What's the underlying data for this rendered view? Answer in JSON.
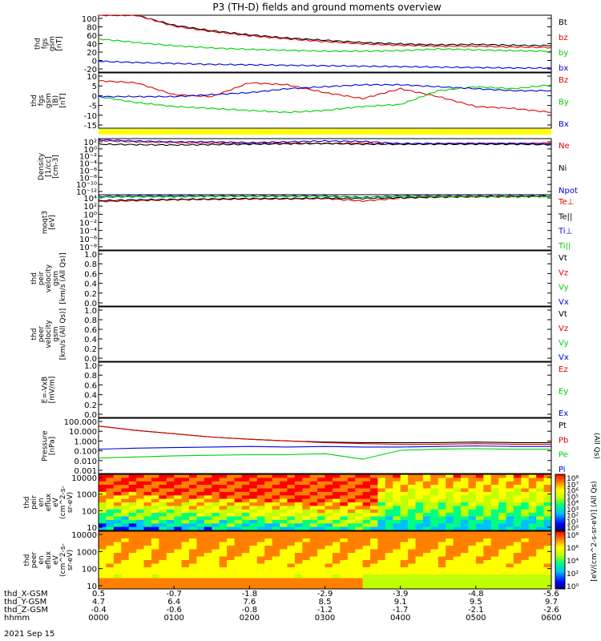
{
  "title": "P3 (TH-D) fields and ground moments overview",
  "date": "2021 Sep 15",
  "colors": {
    "black": "#000000",
    "red": "#e00000",
    "green": "#00d000",
    "blue": "#0000e0",
    "yellow": "#ffff00"
  },
  "panels": [
    {
      "id": "fgs-gsm",
      "ylabel": [
        "thd",
        "fgs",
        "gsm",
        "[nT]"
      ],
      "ticks": [
        "100",
        "80",
        "60",
        "40",
        "20",
        "0",
        "-20"
      ],
      "legend": [
        {
          "label": "Bt",
          "color": "black"
        },
        {
          "label": "bz",
          "color": "red"
        },
        {
          "label": "by",
          "color": "green"
        },
        {
          "label": "bx",
          "color": "blue"
        }
      ]
    },
    {
      "id": "fgs-gsm-sm",
      "ylabel": [
        "thd",
        "fgs",
        "gsm",
        "(B)",
        "[nT]"
      ],
      "ticks": [
        "10",
        "5",
        "0",
        "-5",
        "-10",
        "-15"
      ],
      "legend": [
        {
          "label": "Bz",
          "color": "red"
        },
        {
          "label": "By",
          "color": "green"
        },
        {
          "label": "Bx",
          "color": "blue"
        }
      ]
    },
    {
      "id": "density",
      "ylabel": [
        "Density",
        "[1/cc]",
        "[cm-3]"
      ],
      "ticks": [
        "10²",
        "10⁰",
        "10⁻²",
        "10⁻⁴",
        "10⁻⁶",
        "10⁻⁸",
        "10⁻¹⁰",
        "10⁻¹²"
      ],
      "legend": [
        {
          "label": "Ne",
          "color": "red"
        },
        {
          "label": "Ni",
          "color": "black"
        },
        {
          "label": "Npot",
          "color": "blue"
        }
      ]
    },
    {
      "id": "temperature",
      "ylabel": [
        "moqt3",
        "[eV]"
      ],
      "ticks": [
        "10⁴",
        "10²",
        "10⁰",
        "10⁻²",
        "10⁻⁴",
        "10⁻⁶",
        "10⁻⁸"
      ],
      "legend": [
        {
          "label": "Te⊥",
          "color": "red"
        },
        {
          "label": "Te||",
          "color": "black"
        },
        {
          "label": "Ti⊥",
          "color": "blue"
        },
        {
          "label": "Ti||",
          "color": "green"
        }
      ]
    },
    {
      "id": "peir-velocity",
      "ylabel": [
        "thd",
        "peir",
        "velocity",
        "gsm",
        "[km/s (All Qs)]"
      ],
      "ticks": [
        "1.0",
        "0.8",
        "0.6",
        "0.4",
        "0.2",
        "0.0"
      ],
      "legend": [
        {
          "label": "Vt",
          "color": "black"
        },
        {
          "label": "Vz",
          "color": "red"
        },
        {
          "label": "Vy",
          "color": "green"
        },
        {
          "label": "Vx",
          "color": "blue"
        }
      ]
    },
    {
      "id": "peer-velocity",
      "ylabel": [
        "thd",
        "peer",
        "velocity",
        "gsm",
        "[km/s (All Qs)]"
      ],
      "ticks": [
        "1.0",
        "0.8",
        "0.6",
        "0.4",
        "0.2",
        "0.0"
      ],
      "legend": [
        {
          "label": "Vt",
          "color": "black"
        },
        {
          "label": "Vz",
          "color": "red"
        },
        {
          "label": "Vy",
          "color": "green"
        },
        {
          "label": "Vx",
          "color": "blue"
        }
      ]
    },
    {
      "id": "efield",
      "ylabel": [
        "E=-VxB",
        "[mV/m]"
      ],
      "ticks": [
        "1.0",
        "0.8",
        "0.6",
        "0.4",
        "0.2",
        "0.0"
      ],
      "legend": [
        {
          "label": "Ez",
          "color": "red"
        },
        {
          "label": "Ey",
          "color": "green"
        },
        {
          "label": "Ex",
          "color": "blue"
        }
      ]
    },
    {
      "id": "pressure",
      "ylabel": [
        "Pressure",
        "[nPa]"
      ],
      "ticks": [
        "100.000",
        "10.000",
        "1.000",
        "0.100",
        "0.010",
        "0.001"
      ],
      "legend": [
        {
          "label": "Pt",
          "color": "black"
        },
        {
          "label": "Pb",
          "color": "red"
        },
        {
          "label": "Pe",
          "color": "green"
        },
        {
          "label": "Pi",
          "color": "blue"
        }
      ],
      "side_label": "(All Qs)"
    },
    {
      "id": "peir-eflux",
      "ylabel": [
        "thd",
        "peir",
        "en",
        "eflux",
        "eV",
        "(cm^2-s-",
        "sr-eV)"
      ],
      "ticks": [
        "10000",
        "1000",
        "100",
        "10"
      ],
      "colorbar": [
        "10⁸",
        "10⁷",
        "10⁶",
        "10⁵",
        "10⁴",
        "10³",
        "10²",
        "10¹",
        "10⁰"
      ]
    },
    {
      "id": "peer-eflux",
      "ylabel": [
        "thd",
        "peer",
        "en",
        "eflux",
        "eV",
        "(cm^2-s-",
        "sr-eV)"
      ],
      "ticks": [
        "10000",
        "1000",
        "100",
        "10"
      ],
      "colorbar": [
        "10⁸",
        "10⁶",
        "10⁴",
        "10²",
        "10⁰"
      ],
      "colorbar_label": "[eV/(cm^2-s-sr-eV)] (All Qs)"
    }
  ],
  "xaxis": {
    "rows": [
      {
        "label": "thd_X-GSM",
        "values": [
          "0.5",
          "-0.7",
          "-1.8",
          "-2.9",
          "-3.9",
          "-4.8",
          "-5.6"
        ]
      },
      {
        "label": "thd_Y-GSM",
        "values": [
          "4.7",
          "6.4",
          "7.6",
          "8.5",
          "9.1",
          "9.5",
          "9.7"
        ]
      },
      {
        "label": "thd_Z-GSM",
        "values": [
          "-0.4",
          "-0.6",
          "-0.8",
          "-1.2",
          "-1.7",
          "-2.1",
          "-2.6"
        ]
      },
      {
        "label": "hhmm",
        "values": [
          "0000",
          "0100",
          "0200",
          "0300",
          "0400",
          "0500",
          "0600"
        ]
      }
    ]
  },
  "chart_data": [
    {
      "type": "line",
      "x": [
        "0000",
        "0030",
        "0100",
        "0130",
        "0200",
        "0230",
        "0300",
        "0330",
        "0400",
        "0430",
        "0500",
        "0530",
        "0600"
      ],
      "ylim": [
        -25,
        100
      ],
      "series": [
        {
          "name": "Bt",
          "values": [
            100,
            100,
            78,
            66,
            57,
            50,
            45,
            40,
            37,
            35,
            36,
            34,
            33
          ]
        },
        {
          "name": "bz",
          "values": [
            100,
            100,
            76,
            64,
            55,
            48,
            42,
            37,
            34,
            32,
            32,
            30,
            29
          ]
        },
        {
          "name": "by",
          "values": [
            48,
            40,
            33,
            28,
            25,
            23,
            21,
            21,
            22,
            26,
            24,
            22,
            21
          ]
        },
        {
          "name": "bx",
          "values": [
            -1,
            -4,
            -6,
            -8,
            -9,
            -10,
            -11,
            -12,
            -13,
            -14,
            -15,
            -16,
            -16
          ]
        }
      ]
    },
    {
      "type": "line",
      "x": [
        "0000",
        "0030",
        "0100",
        "0130",
        "0200",
        "0230",
        "0300",
        "0330",
        "0400",
        "0430",
        "0500",
        "0530",
        "0600"
      ],
      "ylim": [
        -18,
        10
      ],
      "series": [
        {
          "name": "Bz",
          "values": [
            6,
            5,
            -1,
            -2,
            5,
            4,
            0,
            -3,
            2,
            -2,
            -7,
            -8,
            -10
          ]
        },
        {
          "name": "By",
          "values": [
            -2,
            -5,
            -7,
            -8,
            -9,
            -10,
            -9,
            -7,
            -6,
            1,
            3,
            2,
            4
          ]
        },
        {
          "name": "Bx",
          "values": [
            -2,
            -2,
            -2,
            -1,
            0,
            2,
            3,
            4,
            4,
            3,
            2,
            1,
            1
          ]
        }
      ]
    },
    {
      "type": "line",
      "log_y": true,
      "x": [
        "0000",
        "0030",
        "0100",
        "0130",
        "0200",
        "0230",
        "0300",
        "0330",
        "0400",
        "0430",
        "0500",
        "0530",
        "0600"
      ],
      "ylim": [
        -12,
        2
      ],
      "series": [
        {
          "name": "Ne",
          "values": [
            1.5,
            1.2,
            1.0,
            0.9,
            0.8,
            0.9,
            0.8,
            0.9,
            0.6,
            0.7,
            0.8,
            0.8,
            0.9
          ]
        },
        {
          "name": "Ni",
          "values": [
            0.6,
            0.5,
            0.4,
            0.5,
            0.6,
            0.7,
            0.8,
            0.6,
            0.6,
            0.6,
            0.6,
            0.6,
            0.5
          ]
        },
        {
          "name": "Npot",
          "values": [
            1.7,
            1.4,
            1.2,
            1.2,
            1.0,
            1.2,
            1.4,
            1.3,
            0.8,
            0.8,
            0.8,
            0.8,
            0.7
          ]
        }
      ]
    },
    {
      "type": "line",
      "log_y": true,
      "x": [
        "0000",
        "0030",
        "0100",
        "0130",
        "0200",
        "0230",
        "0300",
        "0330",
        "0400",
        "0430",
        "0500",
        "0530",
        "0600"
      ],
      "ylim": [
        -9,
        4
      ],
      "series": [
        {
          "name": "Te⊥",
          "values": [
            2.4,
            2.6,
            2.8,
            2.9,
            3.0,
            3.0,
            3.1,
            2.5,
            3.2,
            3.4,
            3.5,
            3.5,
            3.6
          ]
        },
        {
          "name": "Te||",
          "values": [
            2.6,
            2.8,
            2.9,
            3.0,
            3.1,
            3.1,
            3.2,
            3.1,
            3.3,
            3.5,
            3.6,
            3.6,
            3.7
          ]
        },
        {
          "name": "Ti⊥",
          "values": [
            3.6,
            3.7,
            3.7,
            3.7,
            3.7,
            3.7,
            3.7,
            3.4,
            3.7,
            3.7,
            3.7,
            3.7,
            3.7
          ]
        },
        {
          "name": "Ti||",
          "values": [
            3.4,
            3.5,
            3.5,
            3.6,
            3.6,
            3.6,
            3.6,
            3.3,
            3.6,
            3.6,
            3.6,
            3.6,
            3.6
          ]
        }
      ]
    },
    {
      "type": "heatmap",
      "ylim": [
        5,
        25000
      ],
      "x_range": [
        "0000",
        "0600"
      ],
      "colorbar_range_log10": [
        0,
        8
      ]
    },
    {
      "type": "heatmap",
      "ylim": [
        5,
        25000
      ],
      "x_range": [
        "0000",
        "0600"
      ],
      "colorbar_range_log10": [
        0,
        8
      ]
    }
  ]
}
